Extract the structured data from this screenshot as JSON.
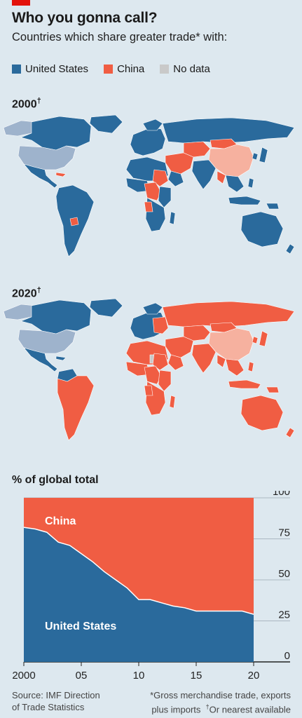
{
  "header": {
    "title": "Who you gonna call?",
    "subtitle": "Countries which share greater trade* with:"
  },
  "legend": [
    {
      "label": "United States",
      "color": "#2a6a9c"
    },
    {
      "label": "China",
      "color": "#f05d43"
    },
    {
      "label": "No data",
      "color": "#c9c9c9"
    }
  ],
  "colors": {
    "us": "#2a6a9c",
    "china": "#f05d43",
    "nodata_country": "#9eb3cc",
    "china_self": "#f6b19f",
    "ocean": "#dde8ef"
  },
  "maps": {
    "map_2000": {
      "label": "2000",
      "dagger": "†"
    },
    "map_2020": {
      "label": "2020",
      "dagger": "†"
    }
  },
  "chart_data": {
    "type": "area",
    "title": "% of global total",
    "x": [
      2000,
      2001,
      2002,
      2003,
      2004,
      2005,
      2006,
      2007,
      2008,
      2009,
      2010,
      2011,
      2012,
      2013,
      2014,
      2015,
      2016,
      2017,
      2018,
      2019,
      2020
    ],
    "x_tick_labels": [
      "2000",
      "05",
      "10",
      "15",
      "20"
    ],
    "x_ticks": [
      2000,
      2005,
      2010,
      2015,
      2020
    ],
    "ylim": [
      0,
      100
    ],
    "y_ticks": [
      0,
      25,
      50,
      75,
      100
    ],
    "series": [
      {
        "name": "United States",
        "values": [
          82,
          81,
          79,
          73,
          71,
          66,
          61,
          55,
          50,
          45,
          38,
          38,
          36,
          34,
          33,
          31,
          31,
          31,
          31,
          31,
          29
        ]
      },
      {
        "name": "China",
        "values": [
          18,
          19,
          21,
          27,
          29,
          34,
          39,
          45,
          50,
          55,
          62,
          62,
          64,
          66,
          67,
          69,
          69,
          69,
          69,
          69,
          71
        ]
      }
    ]
  },
  "footer": {
    "source_line1": "Source: IMF Direction",
    "source_line2": "of Trade Statistics",
    "note_line1": "*Gross merchandise trade, exports",
    "note_line2_a": "plus imports",
    "note_line2_dagger": "†",
    "note_line2_b": "Or nearest available"
  }
}
